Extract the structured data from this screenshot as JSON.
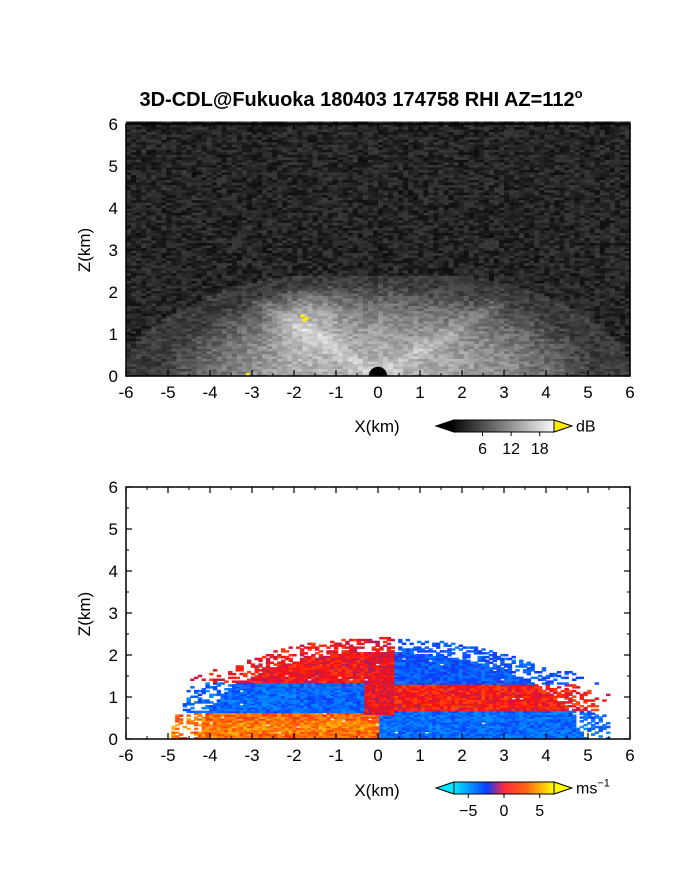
{
  "figure": {
    "title": "3D-CDL@Fukuoka 180403 174758 RHI AZ=112",
    "title_superscript": "o"
  },
  "chart_data": [
    {
      "type": "heatmap",
      "name": "reflectivity",
      "xlabel": "X(km)",
      "ylabel": "Z(km)",
      "xlim": [
        -6,
        6
      ],
      "ylim": [
        0,
        6
      ],
      "xticks": [
        "-6",
        "-5",
        "-4",
        "-3",
        "-2",
        "-1",
        "0",
        "1",
        "2",
        "3",
        "4",
        "5",
        "6"
      ],
      "yticks": [
        "0",
        "1",
        "2",
        "3",
        "4",
        "5",
        "6"
      ],
      "colorbar": {
        "unit": "dB",
        "ticks": [
          "6",
          "12",
          "18"
        ],
        "tick_values": [
          6,
          12,
          18
        ],
        "range": [
          0,
          21
        ],
        "colormap": "grayscale",
        "extend_high_color": "#ffee00"
      }
    },
    {
      "type": "heatmap",
      "name": "doppler-velocity",
      "xlabel": "X(km)",
      "ylabel": "Z(km)",
      "xlim": [
        -6,
        6
      ],
      "ylim": [
        0,
        6
      ],
      "xticks": [
        "-6",
        "-5",
        "-4",
        "-3",
        "-2",
        "-1",
        "0",
        "1",
        "2",
        "3",
        "4",
        "5",
        "6"
      ],
      "yticks": [
        "0",
        "1",
        "2",
        "3",
        "4",
        "5",
        "6"
      ],
      "colorbar": {
        "unit": "ms",
        "unit_superscript": "−1",
        "ticks": [
          "−5",
          "0",
          "5"
        ],
        "tick_values": [
          -5,
          0,
          5
        ],
        "range": [
          -7,
          7
        ],
        "colormap": [
          "#00e8ff",
          "#0a3cff",
          "#ff1010",
          "#ffff00"
        ]
      }
    }
  ]
}
